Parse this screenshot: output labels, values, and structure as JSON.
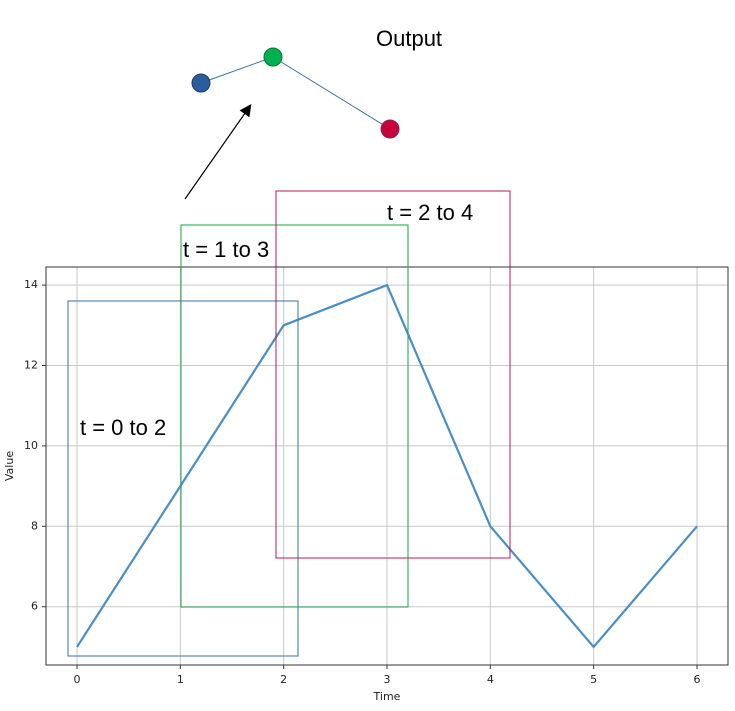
{
  "chart_data": {
    "type": "line",
    "x": [
      0,
      1,
      2,
      3,
      4,
      5,
      6
    ],
    "values": [
      5,
      9,
      13,
      14,
      8,
      5,
      8
    ],
    "color": "#4a8fc4",
    "xlim": [
      -0.3,
      6.3
    ],
    "ylim": [
      4.55,
      14.45
    ],
    "xticks": [
      0,
      1,
      2,
      3,
      4,
      5,
      6
    ],
    "yticks": [
      6,
      8,
      10,
      12,
      14
    ],
    "grid": true,
    "x_label": "Time",
    "y_label": "Value",
    "annotations": [
      "t = 0 to 2",
      "t = 1 to 3",
      "t = 2 to 4"
    ],
    "output_label": "Output"
  }
}
